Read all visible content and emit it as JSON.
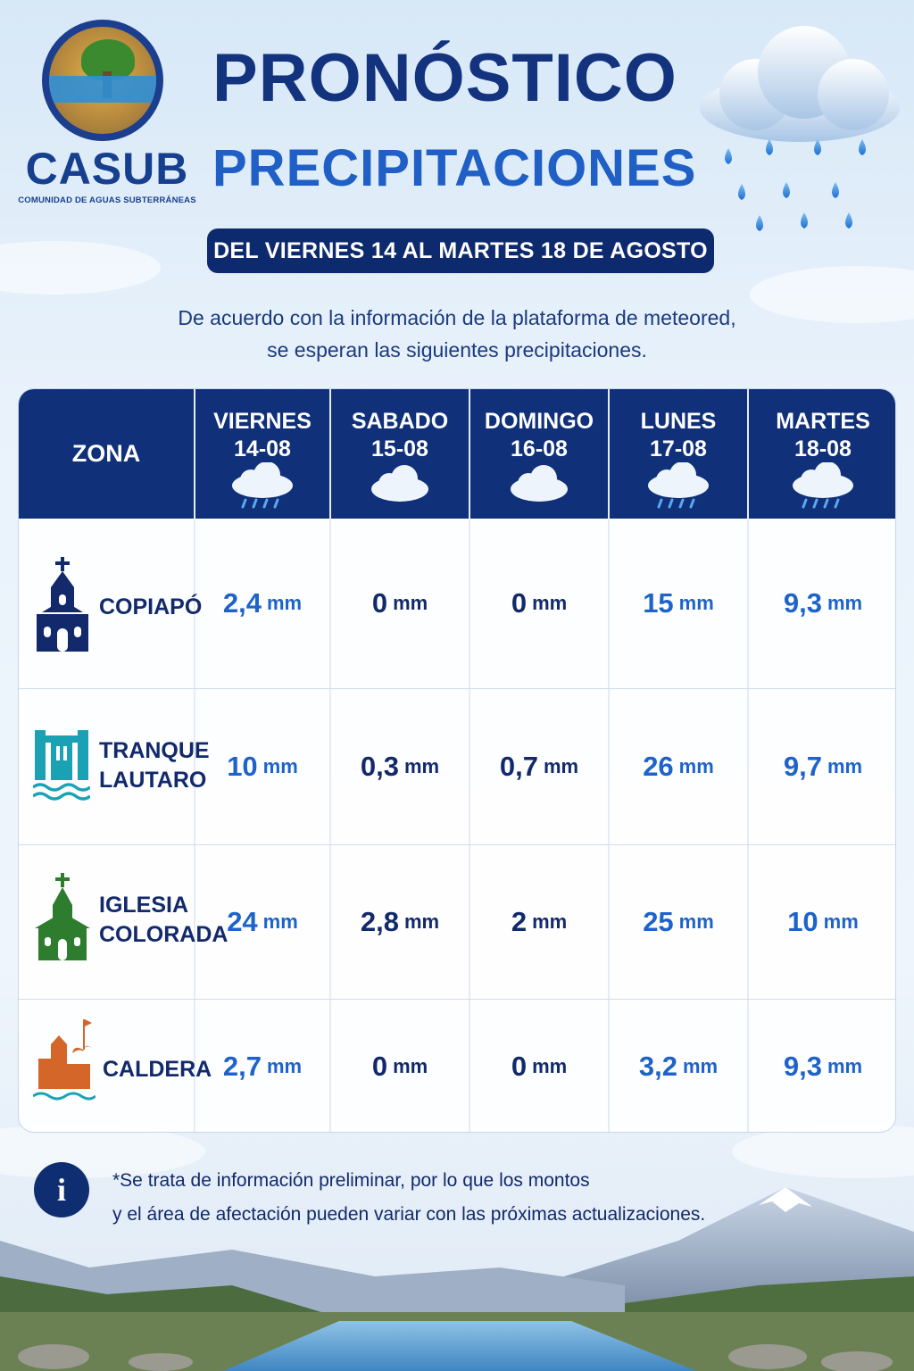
{
  "logo": {
    "name": "CASUB",
    "subtitle": "COMUNIDAD DE AGUAS SUBTERRÁNEAS"
  },
  "title": {
    "line1": "PRONÓSTICO",
    "line2": "PRECIPITACIONES"
  },
  "date_range": "DEL VIERNES 14 AL MARTES 18 DE AGOSTO",
  "intro": {
    "line1": "De acuerdo con la información de la plataforma de meteored,",
    "line2": "se esperan las siguientes precipitaciones."
  },
  "table": {
    "zone_header": "ZONA",
    "days": [
      {
        "day": "VIERNES",
        "date": "14-08",
        "icon": "rain-cloud-icon"
      },
      {
        "day": "SABADO",
        "date": "15-08",
        "icon": "cloud-icon"
      },
      {
        "day": "DOMINGO",
        "date": "16-08",
        "icon": "cloud-icon"
      },
      {
        "day": "LUNES",
        "date": "17-08",
        "icon": "rain-cloud-icon"
      },
      {
        "day": "MARTES",
        "date": "18-08",
        "icon": "rain-cloud-icon"
      }
    ],
    "unit": "mm",
    "rows": [
      {
        "zone_line1": "COPIAPÓ",
        "zone_line2": "",
        "icon": "church-icon",
        "values": [
          "2,4",
          "0",
          "0",
          "15",
          "9,3"
        ]
      },
      {
        "zone_line1": "TRANQUE",
        "zone_line2": "LAUTARO",
        "icon": "dam-icon",
        "values": [
          "10",
          "0,3",
          "0,7",
          "26",
          "9,7"
        ]
      },
      {
        "zone_line1": "IGLESIA",
        "zone_line2": "COLORADA",
        "icon": "chapel-icon",
        "values": [
          "24",
          "2,8",
          "2",
          "25",
          "10"
        ]
      },
      {
        "zone_line1": "CALDERA",
        "zone_line2": "",
        "icon": "coastal-town-icon",
        "values": [
          "2,7",
          "0",
          "0",
          "3,2",
          "9,3"
        ]
      }
    ]
  },
  "footer": {
    "line1": "*Se trata de información preliminar, por lo que los montos",
    "line2": "y el área de afectación pueden variar con las próximas actualizaciones."
  },
  "colors": {
    "navy": "#10307a",
    "blue": "#1d63c9",
    "dark_text": "#12296b"
  }
}
